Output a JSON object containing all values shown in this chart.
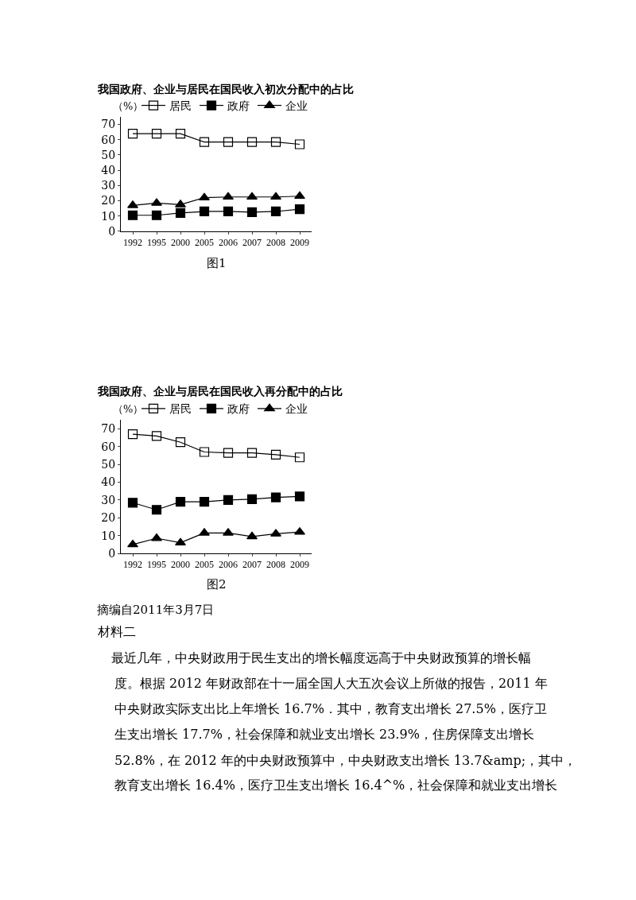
{
  "chart_data": [
    {
      "type": "line",
      "title": "我国政府、企业与居民在国民收入初次分配中的占比",
      "ylabel": "（%）",
      "categories": [
        "1992",
        "1995",
        "2000",
        "2005",
        "2006",
        "2007",
        "2008",
        "2009"
      ],
      "series": [
        {
          "name": "居民",
          "color": "#000000",
          "marker": "square-open",
          "values": [
            64,
            64,
            64,
            58.5,
            58.5,
            58.5,
            58.5,
            57
          ]
        },
        {
          "name": "政府",
          "color": "#000000",
          "marker": "square",
          "values": [
            10.5,
            10.5,
            12,
            13,
            13,
            12.5,
            13,
            14.5
          ]
        },
        {
          "name": "企业",
          "color": "#000000",
          "marker": "triangle",
          "values": [
            17,
            18.5,
            17.5,
            22,
            22.5,
            22.5,
            22.5,
            23
          ]
        }
      ],
      "ylim": [
        0,
        75
      ],
      "yticks": [
        0,
        10,
        20,
        30,
        40,
        50,
        60,
        70
      ],
      "legend": "top right",
      "line_style": "solid",
      "annotations": [
        "图1"
      ]
    },
    {
      "type": "line",
      "title": "我国政府、企业与居民在国民收入再分配中的占比",
      "ylabel": "（%）",
      "categories": [
        "1992",
        "1995",
        "2000",
        "2005",
        "2006",
        "2007",
        "2008",
        "2009"
      ],
      "series": [
        {
          "name": "居民",
          "color": "#000000",
          "marker": "square-open",
          "values": [
            67,
            66,
            62.5,
            57,
            56.5,
            56.5,
            55.5,
            54
          ]
        },
        {
          "name": "政府",
          "color": "#000000",
          "marker": "square",
          "values": [
            28.5,
            24.5,
            29,
            29,
            30,
            30.5,
            31.5,
            32
          ]
        },
        {
          "name": "企业",
          "color": "#000000",
          "marker": "triangle",
          "values": [
            5,
            8.5,
            6,
            11.5,
            11.5,
            9.5,
            11,
            12
          ]
        }
      ],
      "ylim": [
        0,
        75
      ],
      "yticks": [
        0,
        10,
        20,
        30,
        40,
        50,
        60,
        70
      ],
      "legend": "top right",
      "line_style": "solid",
      "annotations": [
        "图2",
        "摘编自2011年3月7日",
        "材料二",
        "最近几年，中央财政用于民生支出的增长幅度远高于中央财政预算的增长幅",
        "度。根据 2012 年财政部在十一届全国人大五次会议上所做的报告，2011 年",
        "中央财政实际支出比上年增长 16.7%．其中，教育支出增长 27.5%，医疗卫",
        "生支出增长 17.7%，社会保障和就业支出增长 23.9%，住房保障支出增长",
        "52.8%，在 2012 年的中央财政预算中，中央财政支出增长 13.7&amp;，其中，",
        "教育支出增长 16.4%，医疗卫生支出增长 16.4^%，社会保障和就业支出增长"
      ]
    }
  ]
}
